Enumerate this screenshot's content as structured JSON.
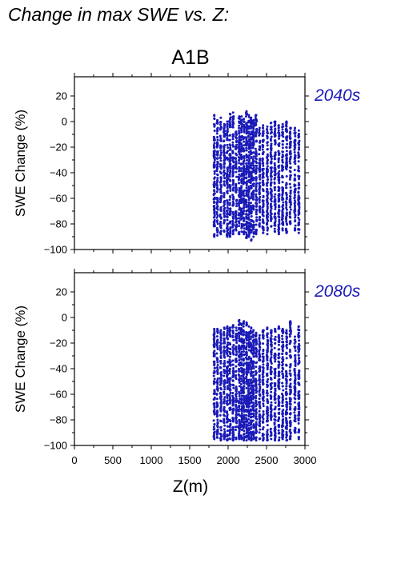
{
  "figure": {
    "title": "Change in max SWE vs. Z:",
    "subtitle": "A1B"
  },
  "colors": {
    "points": "#1a1ab8",
    "axis": "#000000",
    "label": "#1a1ab8"
  },
  "chart_data": [
    {
      "type": "scatter",
      "panel_label": "2040s",
      "ylabel": "SWE Change (%)",
      "xlim": [
        0,
        3000
      ],
      "ylim": [
        -100,
        35
      ],
      "yticks": [
        -100,
        -80,
        -60,
        -40,
        -20,
        0,
        20
      ],
      "yticklabels": [
        "−100",
        "−80",
        "−60",
        "−40",
        "−20",
        "0",
        "20"
      ],
      "xticks": [
        0,
        500,
        1000,
        1500,
        2000,
        2500,
        3000
      ],
      "grid": false,
      "columns": [
        {
          "x": 1820,
          "ymin": -90,
          "ymax": 5
        },
        {
          "x": 1860,
          "ymin": -89,
          "ymax": 1
        },
        {
          "x": 1905,
          "ymin": -88,
          "ymax": 3
        },
        {
          "x": 1950,
          "ymin": -86,
          "ymax": -2
        },
        {
          "x": 1990,
          "ymin": -90,
          "ymax": 0
        },
        {
          "x": 2025,
          "ymin": -90,
          "ymax": 6
        },
        {
          "x": 2065,
          "ymin": -88,
          "ymax": 7
        },
        {
          "x": 2105,
          "ymin": -85,
          "ymax": -8
        },
        {
          "x": 2145,
          "ymin": -88,
          "ymax": 4
        },
        {
          "x": 2175,
          "ymin": -86,
          "ymax": 4
        },
        {
          "x": 2205,
          "ymin": -88,
          "ymax": 2
        },
        {
          "x": 2240,
          "ymin": -91,
          "ymax": 8
        },
        {
          "x": 2270,
          "ymin": -90,
          "ymax": 5
        },
        {
          "x": 2300,
          "ymin": -93,
          "ymax": 3
        },
        {
          "x": 2330,
          "ymin": -90,
          "ymax": 1
        },
        {
          "x": 2365,
          "ymin": -88,
          "ymax": 5
        },
        {
          "x": 2410,
          "ymin": -82,
          "ymax": -5
        },
        {
          "x": 2455,
          "ymin": -87,
          "ymax": -3
        },
        {
          "x": 2510,
          "ymin": -88,
          "ymax": -4
        },
        {
          "x": 2560,
          "ymin": -82,
          "ymax": -1
        },
        {
          "x": 2610,
          "ymin": -86,
          "ymax": 0
        },
        {
          "x": 2660,
          "ymin": -88,
          "ymax": -3
        },
        {
          "x": 2710,
          "ymin": -85,
          "ymax": -2
        },
        {
          "x": 2760,
          "ymin": -87,
          "ymax": 0
        },
        {
          "x": 2810,
          "ymin": -80,
          "ymax": -5
        },
        {
          "x": 2870,
          "ymin": -85,
          "ymax": -5
        },
        {
          "x": 2920,
          "ymin": -87,
          "ymax": -7
        }
      ]
    },
    {
      "type": "scatter",
      "panel_label": "2080s",
      "ylabel": "SWE Change (%)",
      "xlabel": "Z(m)",
      "xlim": [
        0,
        3000
      ],
      "ylim": [
        -100,
        35
      ],
      "yticks": [
        -100,
        -80,
        -60,
        -40,
        -20,
        0,
        20
      ],
      "yticklabels": [
        "−100",
        "−80",
        "−60",
        "−40",
        "−20",
        "0",
        "20"
      ],
      "xticks": [
        0,
        500,
        1000,
        1500,
        2000,
        2500,
        3000
      ],
      "xticklabels": [
        "0",
        "500",
        "1000",
        "1500",
        "2000",
        "2500",
        "3000"
      ],
      "grid": false,
      "columns": [
        {
          "x": 1820,
          "ymin": -95,
          "ymax": -9
        },
        {
          "x": 1860,
          "ymin": -94,
          "ymax": -9
        },
        {
          "x": 1905,
          "ymin": -96,
          "ymax": -10
        },
        {
          "x": 1950,
          "ymin": -95,
          "ymax": -8
        },
        {
          "x": 1990,
          "ymin": -96,
          "ymax": -7
        },
        {
          "x": 2025,
          "ymin": -95,
          "ymax": -8
        },
        {
          "x": 2065,
          "ymin": -96,
          "ymax": -6
        },
        {
          "x": 2105,
          "ymin": -95,
          "ymax": -8
        },
        {
          "x": 2145,
          "ymin": -95,
          "ymax": -2
        },
        {
          "x": 2175,
          "ymin": -95,
          "ymax": -5
        },
        {
          "x": 2205,
          "ymin": -96,
          "ymax": -3
        },
        {
          "x": 2240,
          "ymin": -96,
          "ymax": -4
        },
        {
          "x": 2270,
          "ymin": -95,
          "ymax": -7
        },
        {
          "x": 2300,
          "ymin": -96,
          "ymax": -8
        },
        {
          "x": 2330,
          "ymin": -95,
          "ymax": -10
        },
        {
          "x": 2365,
          "ymin": -96,
          "ymax": -12
        },
        {
          "x": 2410,
          "ymin": -95,
          "ymax": -14
        },
        {
          "x": 2455,
          "ymin": -96,
          "ymax": -10
        },
        {
          "x": 2510,
          "ymin": -96,
          "ymax": -8
        },
        {
          "x": 2560,
          "ymin": -95,
          "ymax": -10
        },
        {
          "x": 2610,
          "ymin": -96,
          "ymax": -9
        },
        {
          "x": 2660,
          "ymin": -96,
          "ymax": -7
        },
        {
          "x": 2710,
          "ymin": -95,
          "ymax": -9
        },
        {
          "x": 2760,
          "ymin": -96,
          "ymax": -10
        },
        {
          "x": 2810,
          "ymin": -95,
          "ymax": -3
        },
        {
          "x": 2870,
          "ymin": -90,
          "ymax": -15
        },
        {
          "x": 2920,
          "ymin": -95,
          "ymax": -7
        }
      ]
    }
  ]
}
